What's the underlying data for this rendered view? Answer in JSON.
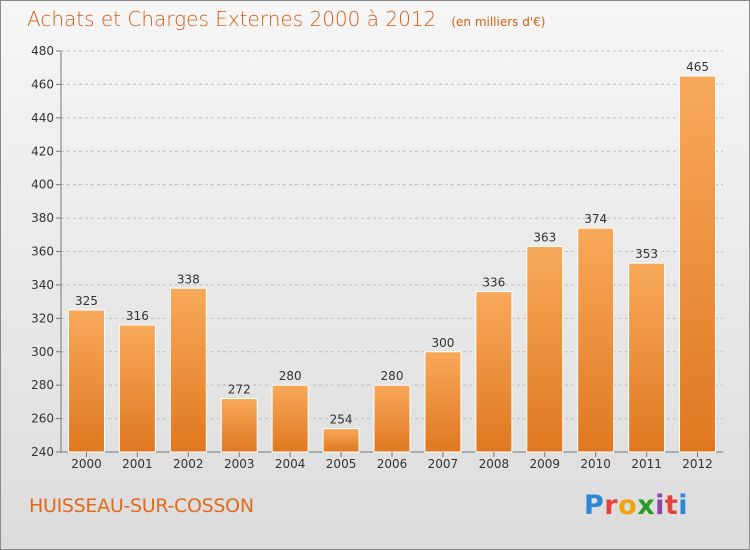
{
  "title": "Achats et Charges Externes 2000 à 2012",
  "subtitle": "(en milliers d'€)",
  "commune": "HUISSEAU-SUR-COSSON",
  "logo": {
    "p": "P",
    "r": "r",
    "o": "o",
    "x": "x",
    "i": "i",
    "t": "t",
    "i2": "i"
  },
  "colors": {
    "title": "#d35f16",
    "bar_top": "#f7a95a",
    "bar_bottom": "#e07820",
    "bar_stroke": "#ffffff",
    "grid": "#bdbdbd",
    "axis_text": "#333333"
  },
  "chart_data": {
    "type": "bar",
    "categories": [
      "2000",
      "2001",
      "2002",
      "2003",
      "2004",
      "2005",
      "2006",
      "2007",
      "2008",
      "2009",
      "2010",
      "2011",
      "2012"
    ],
    "values": [
      325,
      316,
      338,
      272,
      280,
      254,
      280,
      300,
      336,
      363,
      374,
      353,
      465
    ],
    "title": "Achats et Charges Externes 2000 à 2012",
    "xlabel": "",
    "ylabel": "",
    "ylim": [
      240,
      480
    ],
    "yticks": [
      240,
      260,
      280,
      300,
      320,
      340,
      360,
      380,
      400,
      420,
      440,
      460,
      480
    ],
    "grid": true,
    "data_labels": true
  }
}
